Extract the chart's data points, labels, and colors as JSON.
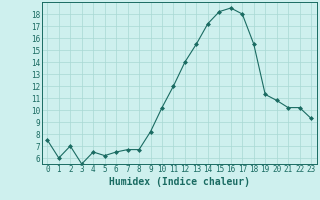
{
  "x": [
    0,
    1,
    2,
    3,
    4,
    5,
    6,
    7,
    8,
    9,
    10,
    11,
    12,
    13,
    14,
    15,
    16,
    17,
    18,
    19,
    20,
    21,
    22,
    23
  ],
  "y": [
    7.5,
    6.0,
    7.0,
    5.5,
    6.5,
    6.2,
    6.5,
    6.7,
    6.7,
    8.2,
    10.2,
    12.0,
    14.0,
    15.5,
    17.2,
    18.2,
    18.5,
    18.0,
    15.5,
    11.3,
    10.8,
    10.2,
    10.2,
    9.3
  ],
  "xlabel": "Humidex (Indice chaleur)",
  "bg_color": "#cef0ee",
  "grid_color": "#a8d8d4",
  "line_color": "#1a6b62",
  "marker_color": "#1a6b62",
  "ylim": [
    5.5,
    19.0
  ],
  "yticks": [
    6,
    7,
    8,
    9,
    10,
    11,
    12,
    13,
    14,
    15,
    16,
    17,
    18
  ],
  "xticks": [
    0,
    1,
    2,
    3,
    4,
    5,
    6,
    7,
    8,
    9,
    10,
    11,
    12,
    13,
    14,
    15,
    16,
    17,
    18,
    19,
    20,
    21,
    22,
    23
  ],
  "tick_label_fontsize": 5.5,
  "xlabel_fontsize": 7.0
}
